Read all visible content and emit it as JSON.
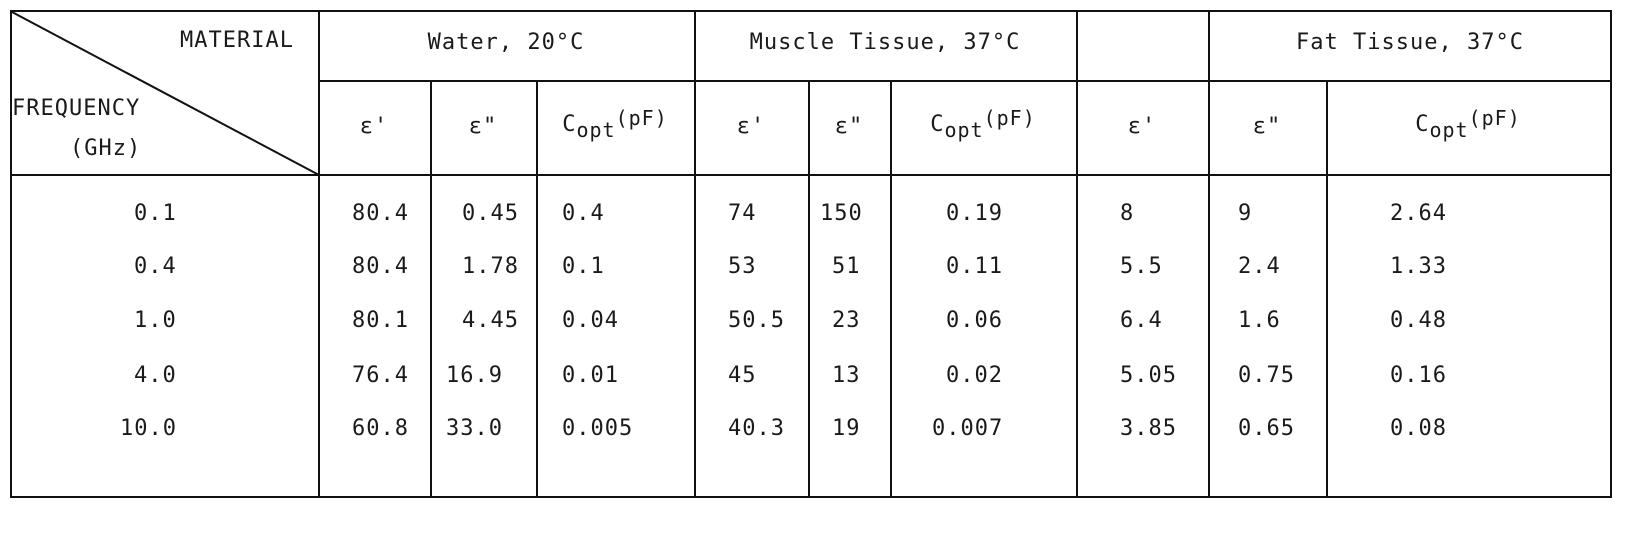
{
  "header": {
    "material_label": "MATERIAL",
    "frequency_label": "FREQUENCY",
    "frequency_unit": "(GHz)",
    "groups": [
      "Water, 20°C",
      "Muscle Tissue, 37°C",
      "Fat Tissue, 37°C"
    ],
    "eps_real": "ε'",
    "eps_imag": "ε\"",
    "copt_c": "C",
    "copt_sub": "opt",
    "copt_unit": "(pF)"
  },
  "rows": [
    {
      "freq": "0.1",
      "cells": [
        "80.4",
        "0.45",
        "0.4",
        "74",
        "150",
        "0.19",
        "8",
        "9",
        "2.64"
      ]
    },
    {
      "freq": "0.4",
      "cells": [
        "80.4",
        "1.78",
        "0.1",
        "53",
        "51",
        "0.11",
        "5.5",
        "2.4",
        "1.33"
      ]
    },
    {
      "freq": "1.0",
      "cells": [
        "80.1",
        "4.45",
        "0.04",
        "50.5",
        "23",
        "0.06",
        "6.4",
        "1.6",
        "0.48"
      ]
    },
    {
      "freq": "4.0",
      "cells": [
        "76.4",
        "16.9",
        "0.01",
        "45",
        "13",
        "0.02",
        "5.05",
        "0.75",
        "0.16"
      ]
    },
    {
      "freq": "10.0",
      "cells": [
        "60.8",
        "33.0",
        "0.005",
        "40.3",
        "19",
        "0.007",
        "3.85",
        "0.65",
        "0.08"
      ]
    }
  ]
}
